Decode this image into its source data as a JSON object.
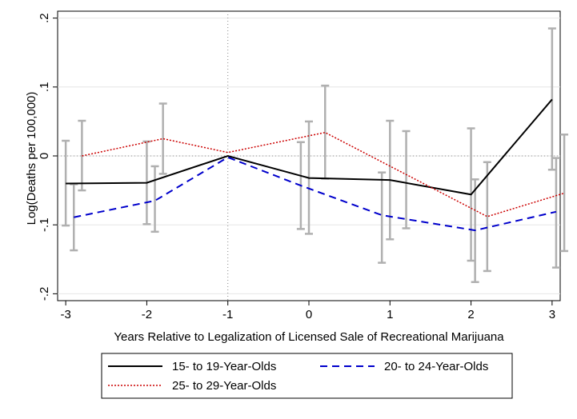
{
  "chart_data": {
    "type": "line",
    "xlabel": "Years Relative to Legalization of Licensed Sale of Recreational Marijuana",
    "ylabel": "Log(Deaths per 100,000)",
    "xlim": [
      -3.1,
      3.1
    ],
    "ylim": [
      -0.21,
      0.21
    ],
    "x_ticks": [
      -3,
      -2,
      -1,
      0,
      1,
      2,
      3
    ],
    "x_tick_labels": [
      "-3",
      "-2",
      "-1",
      "0",
      "1",
      "2",
      "3"
    ],
    "y_ticks": [
      -0.2,
      -0.1,
      0,
      0.1,
      0.2
    ],
    "y_tick_labels": [
      "-.2",
      "-.1",
      "0",
      ".1",
      ".2"
    ],
    "reference_lines": {
      "x": -1,
      "y": 0
    },
    "grid": true,
    "legend_position": "bottom",
    "series": [
      {
        "name": "15- to 19-Year-Olds",
        "color": "#000000",
        "style": "solid",
        "x": [
          -3,
          -2,
          -1,
          0,
          1,
          2,
          3
        ],
        "values": [
          -0.04,
          -0.039,
          0.0,
          -0.032,
          -0.035,
          -0.056,
          0.082
        ],
        "ci_low": [
          -0.101,
          -0.099,
          null,
          -0.113,
          -0.121,
          -0.152,
          -0.02
        ],
        "ci_high": [
          0.022,
          0.021,
          null,
          0.05,
          0.051,
          0.04,
          0.185
        ]
      },
      {
        "name": "20- to 24-Year-Olds",
        "color": "#0000cc",
        "style": "dashed",
        "x": [
          -2.9,
          -1.9,
          -1,
          -0.1,
          0.9,
          2.05,
          3.05
        ],
        "values": [
          -0.089,
          -0.065,
          -0.002,
          -0.043,
          -0.086,
          -0.108,
          -0.081
        ],
        "ci_low": [
          -0.137,
          -0.11,
          null,
          -0.106,
          -0.155,
          -0.183,
          -0.162
        ],
        "ci_high": [
          -0.041,
          -0.015,
          null,
          0.02,
          -0.024,
          -0.034,
          -0.003
        ]
      },
      {
        "name": "25- to 29-Year-Olds",
        "color": "#cc0000",
        "style": "dotted",
        "x": [
          -2.8,
          -1.8,
          -1,
          0.2,
          1.2,
          2.2,
          3.15
        ],
        "values": [
          0.0,
          0.025,
          0.005,
          0.034,
          -0.027,
          -0.088,
          -0.054
        ],
        "ci_low": [
          -0.05,
          -0.026,
          null,
          -0.033,
          -0.105,
          -0.167,
          -0.138
        ],
        "ci_high": [
          0.051,
          0.076,
          null,
          0.102,
          0.036,
          -0.009,
          0.031
        ]
      }
    ]
  }
}
